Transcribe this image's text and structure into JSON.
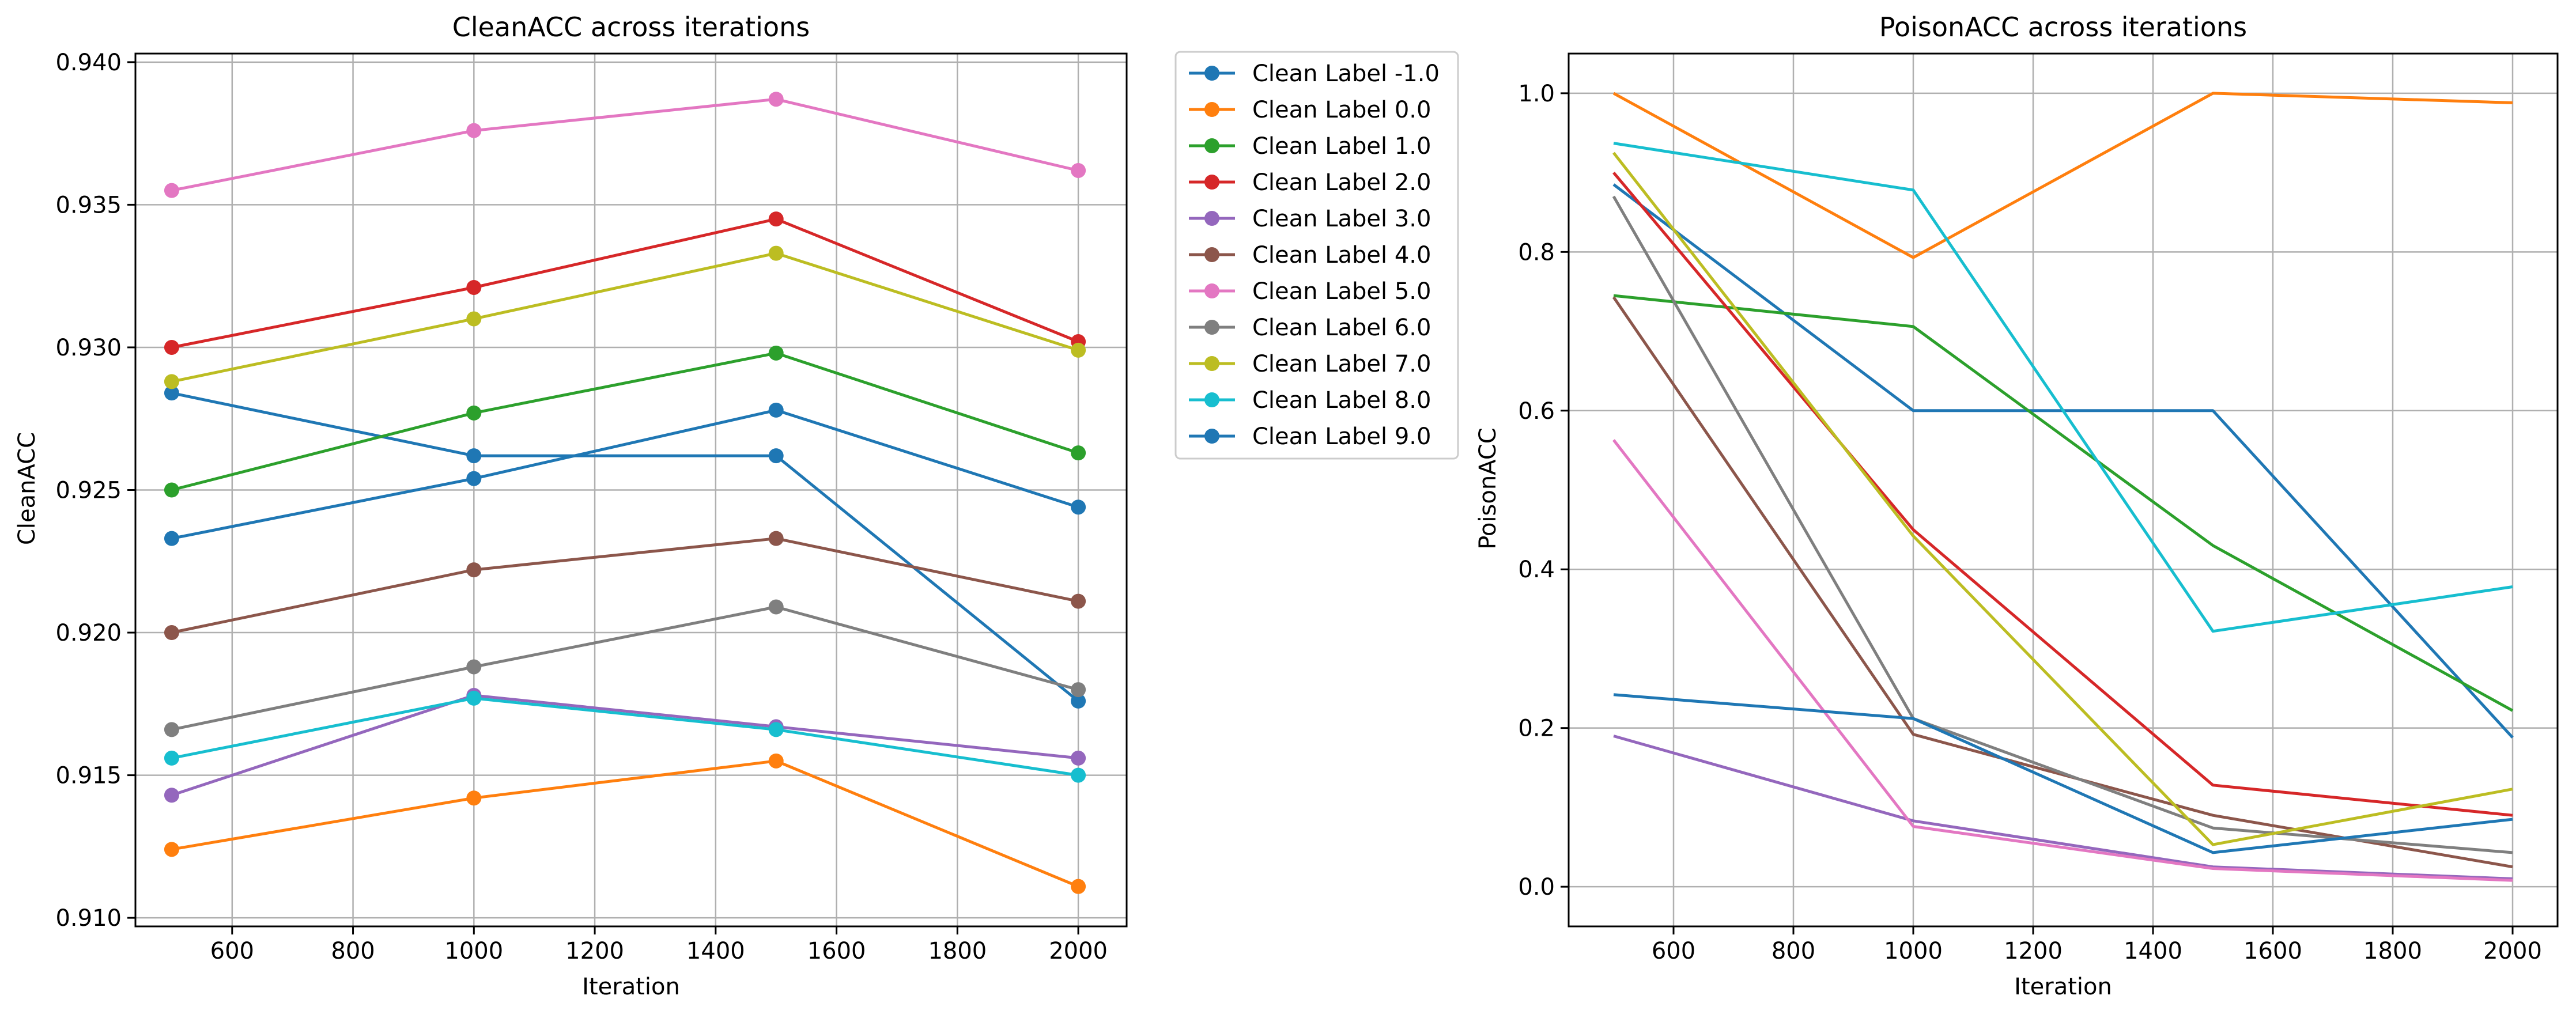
{
  "figure": {
    "background": "#ffffff",
    "grid_color": "#b0b0b0"
  },
  "series_colors": [
    "#1f77b4",
    "#ff7f0e",
    "#2ca02c",
    "#d62728",
    "#9467bd",
    "#8c564b",
    "#e377c2",
    "#7f7f7f",
    "#bcbd22",
    "#17becf",
    "#1f77b4"
  ],
  "chart_data": [
    {
      "type": "line",
      "title": "CleanACC across iterations",
      "xlabel": "Iteration",
      "ylabel": "CleanACC",
      "xlim": [
        440,
        2080
      ],
      "ylim": [
        0.9097,
        0.9403
      ],
      "xticks": [
        600,
        800,
        1000,
        1200,
        1400,
        1600,
        1800,
        2000
      ],
      "yticks": [
        0.91,
        0.915,
        0.92,
        0.925,
        0.93,
        0.935,
        0.94
      ],
      "ytick_decimals": 3,
      "grid": true,
      "markers": true,
      "legend": "outside-right",
      "x": [
        500,
        1000,
        1500,
        2000
      ],
      "series": [
        {
          "name": "Clean Label -1.0",
          "values": [
            0.9284,
            0.9262,
            0.9262,
            0.9176
          ]
        },
        {
          "name": "Clean Label 0.0",
          "values": [
            0.9124,
            0.9142,
            0.9155,
            0.9111
          ]
        },
        {
          "name": "Clean Label 1.0",
          "values": [
            0.925,
            0.9277,
            0.9298,
            0.9263
          ]
        },
        {
          "name": "Clean Label 2.0",
          "values": [
            0.93,
            0.9321,
            0.9345,
            0.9302
          ]
        },
        {
          "name": "Clean Label 3.0",
          "values": [
            0.9143,
            0.9178,
            0.9167,
            0.9156
          ]
        },
        {
          "name": "Clean Label 4.0",
          "values": [
            0.92,
            0.9222,
            0.9233,
            0.9211
          ]
        },
        {
          "name": "Clean Label 5.0",
          "values": [
            0.9355,
            0.9376,
            0.9387,
            0.9362
          ]
        },
        {
          "name": "Clean Label 6.0",
          "values": [
            0.9166,
            0.9188,
            0.9209,
            0.918
          ]
        },
        {
          "name": "Clean Label 7.0",
          "values": [
            0.9288,
            0.931,
            0.9333,
            0.9299
          ]
        },
        {
          "name": "Clean Label 8.0",
          "values": [
            0.9156,
            0.9177,
            0.9166,
            0.915
          ]
        },
        {
          "name": "Clean Label 9.0",
          "values": [
            0.9233,
            0.9254,
            0.9278,
            0.9244
          ]
        }
      ]
    },
    {
      "type": "line",
      "title": "PoisonACC across iterations",
      "xlabel": "Iteration",
      "ylabel": "PoisonACC",
      "xlim": [
        425,
        2075
      ],
      "ylim": [
        -0.05,
        1.05
      ],
      "xticks": [
        600,
        800,
        1000,
        1200,
        1400,
        1600,
        1800,
        2000
      ],
      "yticks": [
        0.0,
        0.2,
        0.4,
        0.6,
        0.8,
        1.0
      ],
      "ytick_decimals": 1,
      "grid": true,
      "markers": false,
      "x": [
        500,
        1000,
        1500,
        2000
      ],
      "series": [
        {
          "values": [
            0.885,
            0.6,
            0.6,
            0.188
          ]
        },
        {
          "values": [
            1.0,
            0.793,
            1.0,
            0.988
          ]
        },
        {
          "values": [
            0.745,
            0.706,
            0.43,
            0.222
          ]
        },
        {
          "values": [
            0.9,
            0.45,
            0.128,
            0.09
          ]
        },
        {
          "values": [
            0.19,
            0.083,
            0.025,
            0.01
          ]
        },
        {
          "values": [
            0.743,
            0.192,
            0.09,
            0.025
          ]
        },
        {
          "values": [
            0.563,
            0.076,
            0.023,
            0.008
          ]
        },
        {
          "values": [
            0.87,
            0.212,
            0.074,
            0.043
          ]
        },
        {
          "values": [
            0.925,
            0.442,
            0.053,
            0.123
          ]
        },
        {
          "values": [
            0.937,
            0.878,
            0.322,
            0.378
          ]
        },
        {
          "values": [
            0.242,
            0.212,
            0.043,
            0.085
          ]
        }
      ]
    }
  ]
}
